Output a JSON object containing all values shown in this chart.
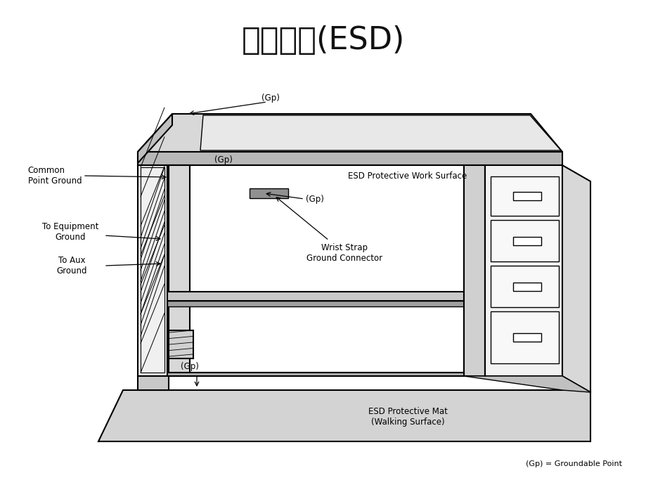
{
  "title": "靜電防護(ESD)",
  "title_fontsize": 32,
  "background_color": "#ffffff",
  "footnote": "(Gp) = Groundable Point",
  "labels": {
    "common_point_ground": "Common\nPoint Ground",
    "to_equipment_ground": "To Equipment\nGround",
    "to_aux_ground": "To Aux\nGround",
    "gp_top": "(Gp)",
    "gp_left_upper": "(Gp)",
    "gp_left_lower": "(Gp)",
    "gp_bottom": "(Gp)",
    "esd_work_surface": "ESD Protective Work Surface",
    "wrist_strap": "Wrist Strap\nGround Connector",
    "esd_mat": "ESD Protective Mat\n(Walking Surface)"
  },
  "colors": {
    "line": "#000000",
    "fill_table_top": "#d8d8d8",
    "fill_mat": "#d3d3d3",
    "fill_white": "#ffffff",
    "fill_panel": "#e5e5e5",
    "fill_dark": "#b0b0b0",
    "fill_shelf": "#c8c8c8",
    "fill_leg": "#d8d8d8"
  }
}
